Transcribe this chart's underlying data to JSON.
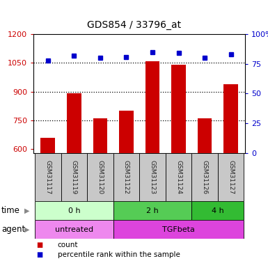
{
  "title": "GDS854 / 33796_at",
  "samples": [
    "GSM31117",
    "GSM31119",
    "GSM31120",
    "GSM31122",
    "GSM31123",
    "GSM31124",
    "GSM31126",
    "GSM31127"
  ],
  "counts": [
    660,
    890,
    760,
    800,
    1060,
    1040,
    760,
    940
  ],
  "percentiles": [
    78,
    82,
    80,
    81,
    85,
    84,
    80,
    83
  ],
  "ylim_left": [
    580,
    1200
  ],
  "ylim_right": [
    0,
    100
  ],
  "yticks_left": [
    600,
    750,
    900,
    1050,
    1200
  ],
  "yticks_right": [
    0,
    25,
    50,
    75,
    100
  ],
  "bar_color": "#cc0000",
  "dot_color": "#0000cc",
  "time_groups": [
    {
      "label": "0 h",
      "start": 0,
      "end": 3,
      "color": "#ccffcc"
    },
    {
      "label": "2 h",
      "start": 3,
      "end": 6,
      "color": "#55cc55"
    },
    {
      "label": "4 h",
      "start": 6,
      "end": 8,
      "color": "#33bb33"
    }
  ],
  "agent_groups": [
    {
      "label": "untreated",
      "start": 0,
      "end": 3,
      "color": "#ee88ee"
    },
    {
      "label": "TGFbeta",
      "start": 3,
      "end": 8,
      "color": "#dd44dd"
    }
  ],
  "left_axis_color": "#cc0000",
  "right_axis_color": "#0000cc",
  "sample_box_color": "#c8c8c8",
  "figsize": [
    3.85,
    3.75
  ],
  "dpi": 100
}
